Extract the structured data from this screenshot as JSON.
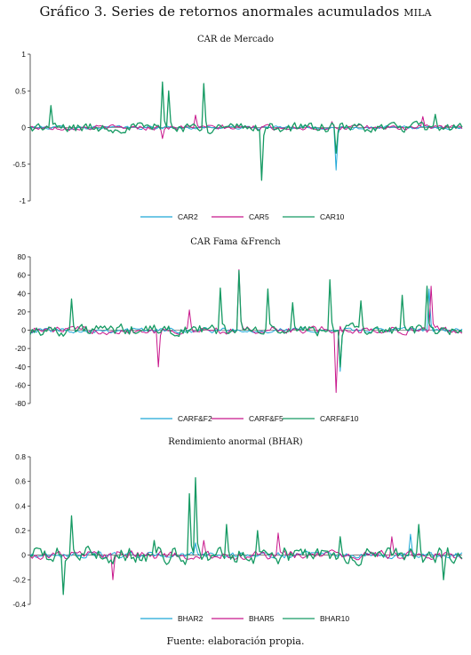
{
  "figure": {
    "title": "Gráfico 3. Series de retornos anormales acumulados",
    "title_smallcaps": "mila",
    "source": "Fuente: elaboración propia."
  },
  "colors": {
    "series1": "#1fa8d8",
    "series2": "#c8178c",
    "series3": "#169a63",
    "axis": "#333333"
  },
  "chart_data": [
    {
      "type": "line",
      "title": "CAR de Mercado",
      "ylim": [
        -1,
        1
      ],
      "yticks": [
        1,
        0.5,
        0,
        -0.5,
        -1
      ],
      "ytick_labels": [
        "1",
        "0.5",
        "0",
        "-0.5",
        "-1"
      ],
      "n_points": 210,
      "legend_placement": "bottom",
      "series": [
        {
          "name": "CAR2",
          "noise": 0.035,
          "spikes": [
            [
              148,
              -0.58
            ]
          ]
        },
        {
          "name": "CAR5",
          "noise": 0.05,
          "spikes": [
            [
              64,
              -0.15
            ],
            [
              80,
              0.17
            ],
            [
              146,
              0.08
            ],
            [
              190,
              0.15
            ]
          ]
        },
        {
          "name": "CAR10",
          "noise": 0.1,
          "spikes": [
            [
              10,
              0.3
            ],
            [
              64,
              0.62
            ],
            [
              67,
              0.5
            ],
            [
              84,
              0.6
            ],
            [
              112,
              -0.72
            ],
            [
              148,
              -0.35
            ],
            [
              196,
              0.18
            ]
          ]
        }
      ]
    },
    {
      "type": "line",
      "title": "CAR Fama &French",
      "ylim": [
        -80,
        80
      ],
      "yticks": [
        80,
        60,
        40,
        20,
        0,
        -20,
        -40,
        -60,
        -80
      ],
      "ytick_labels": [
        "80",
        "60",
        "40",
        "20",
        "0",
        "-20",
        "-40",
        "-60",
        "-80"
      ],
      "n_points": 210,
      "legend_placement": "bottom",
      "series": [
        {
          "name": "CARF&F2",
          "noise": 4,
          "spikes": [
            [
              150,
              -45
            ],
            [
              193,
              45
            ]
          ]
        },
        {
          "name": "CARF&F5",
          "noise": 6,
          "spikes": [
            [
              62,
              -40
            ],
            [
              77,
              22
            ],
            [
              101,
              66
            ],
            [
              148,
              -68
            ],
            [
              194,
              48
            ]
          ]
        },
        {
          "name": "CARF&F10",
          "noise": 9,
          "spikes": [
            [
              20,
              34
            ],
            [
              92,
              46
            ],
            [
              101,
              65
            ],
            [
              115,
              45
            ],
            [
              127,
              30
            ],
            [
              145,
              55
            ],
            [
              150,
              -40
            ],
            [
              160,
              32
            ],
            [
              180,
              38
            ],
            [
              192,
              48
            ]
          ]
        }
      ]
    },
    {
      "type": "line",
      "title": "Rendimiento anormal (BHAR)",
      "ylim": [
        -0.4,
        0.8
      ],
      "yticks": [
        0.8,
        0.6,
        0.4,
        0.2,
        0,
        -0.2,
        -0.4
      ],
      "ytick_labels": [
        "0.8",
        "0.6",
        "0.4",
        "0.2",
        "0",
        "-0.2",
        "-0.4"
      ],
      "n_points": 210,
      "legend_placement": "bottom",
      "series": [
        {
          "name": "BHAR2",
          "noise": 0.035,
          "spikes": [
            [
              80,
              0.1
            ],
            [
              184,
              0.17
            ]
          ]
        },
        {
          "name": "BHAR5",
          "noise": 0.05,
          "spikes": [
            [
              40,
              -0.2
            ],
            [
              84,
              0.12
            ],
            [
              120,
              0.18
            ],
            [
              175,
              0.15
            ]
          ]
        },
        {
          "name": "BHAR10",
          "noise": 0.1,
          "spikes": [
            [
              20,
              0.32
            ],
            [
              16,
              -0.32
            ],
            [
              60,
              0.12
            ],
            [
              77,
              0.5
            ],
            [
              80,
              0.63
            ],
            [
              95,
              0.25
            ],
            [
              110,
              0.2
            ],
            [
              150,
              0.15
            ],
            [
              188,
              0.25
            ],
            [
              200,
              -0.2
            ]
          ]
        }
      ]
    }
  ]
}
